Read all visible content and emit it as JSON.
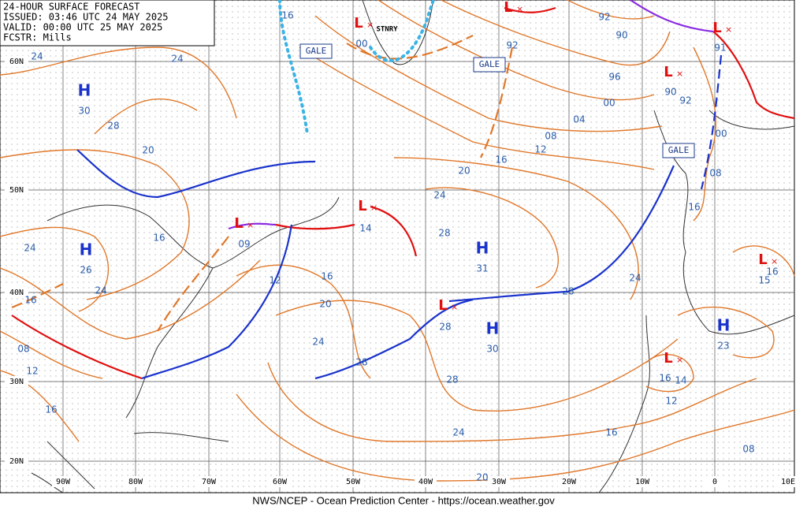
{
  "header": {
    "lines": [
      "24-HOUR SURFACE FORECAST",
      "ISSUED: 03:46 UTC 24 MAY 2025",
      "VALID:  00:00 UTC 25 MAY 2025",
      "FCSTR:  Mills"
    ]
  },
  "grid": {
    "lat_labels": [
      "60N",
      "50N",
      "40N",
      "30N",
      "20N"
    ],
    "lon_labels": [
      "90W",
      "80W",
      "70W",
      "60W",
      "50W",
      "40W",
      "30W",
      "20W",
      "10W",
      "0",
      "10E"
    ]
  },
  "highs": [
    {
      "symbol": "H",
      "pressure": "30"
    },
    {
      "symbol": "H",
      "pressure": "26"
    },
    {
      "symbol": "H",
      "pressure": "31"
    },
    {
      "symbol": "H",
      "pressure": "30"
    },
    {
      "symbol": "H",
      "pressure": "23"
    }
  ],
  "lows": [
    {
      "symbol": "L",
      "pressure": "00"
    },
    {
      "symbol": "L",
      "pressure": "91"
    },
    {
      "symbol": "L",
      "pressure": "90"
    },
    {
      "symbol": "L",
      "pressure": "09"
    },
    {
      "symbol": "L",
      "pressure": "14"
    },
    {
      "symbol": "L",
      "pressure": "15"
    },
    {
      "symbol": "L",
      "pressure": "14"
    },
    {
      "symbol": "L"
    },
    {
      "symbol": "L"
    }
  ],
  "isobar_labels": [
    "24",
    "24",
    "28",
    "20",
    "16",
    "24",
    "24",
    "16",
    "08",
    "12",
    "16",
    "12",
    "16",
    "20",
    "24",
    "28",
    "28",
    "24",
    "20",
    "16",
    "12",
    "08",
    "04",
    "00",
    "96",
    "92",
    "90",
    "92",
    "92",
    "00",
    "08",
    "16",
    "24",
    "28",
    "28",
    "28",
    "24",
    "20",
    "16",
    "12",
    "16",
    "08",
    "16",
    "16"
  ],
  "warnings": [
    "GALE",
    "GALE",
    "GALE"
  ],
  "front_label": "STNRY",
  "footer": "NWS/NCEP - Ocean Prediction Center - https://ocean.weather.gov"
}
